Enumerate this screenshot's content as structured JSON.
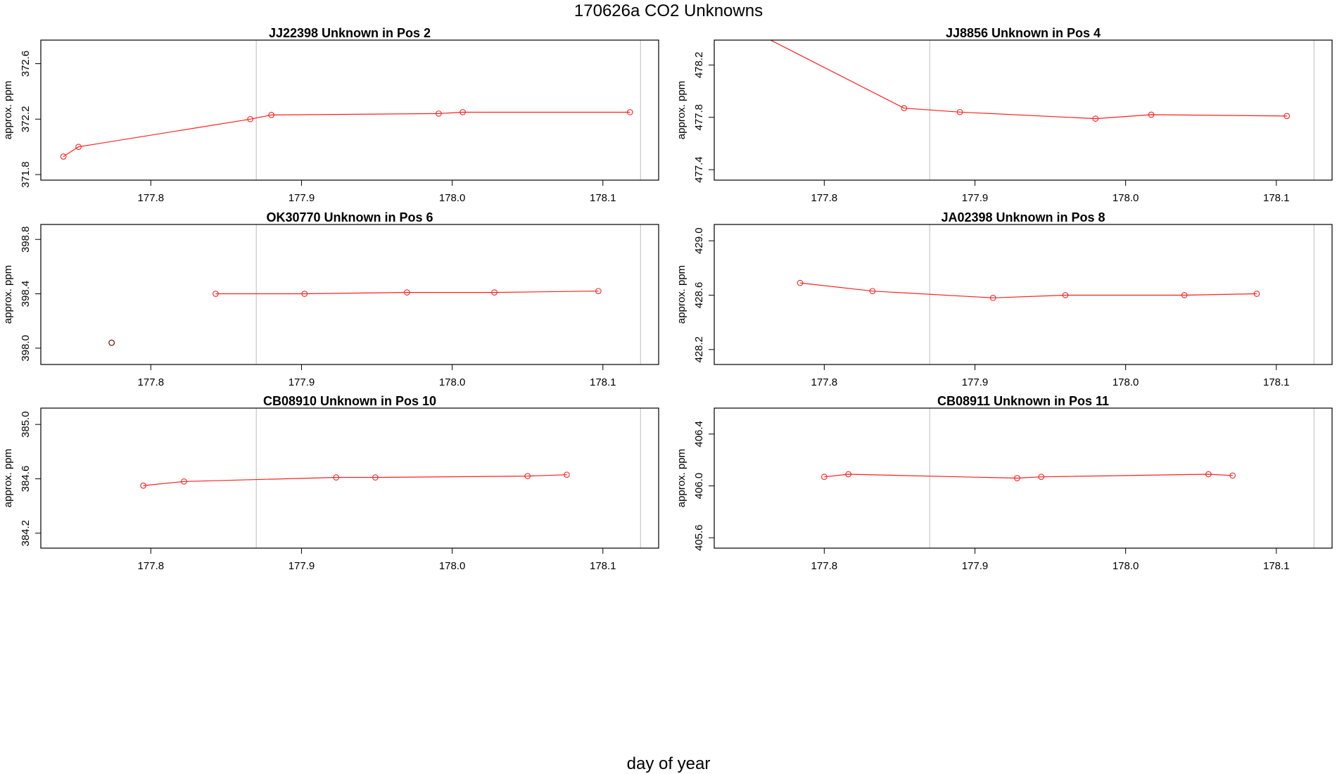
{
  "title": "170626a  CO2 Unknowns",
  "xlabel": "day of year",
  "colors": {
    "series": "#ff2020",
    "frame": "#000000",
    "marker_line": "#c8c8c8",
    "outlier": "#7a1010"
  },
  "chart_data": [
    {
      "type": "line",
      "title": "JJ22398    Unknown in Pos 2",
      "ylabel": "approx. ppm",
      "xlim": [
        177.727,
        178.137
      ],
      "ylim": [
        371.76,
        372.77
      ],
      "xticks": [
        177.8,
        177.9,
        178.0,
        178.1
      ],
      "xtick_labels": [
        "177.8",
        "177.9",
        "178.0",
        "178.1"
      ],
      "yticks": [
        371.8,
        372.2,
        372.6
      ],
      "ytick_labels": [
        "371.8",
        "372.2",
        "372.6"
      ],
      "vlines": [
        177.87,
        178.125
      ],
      "series": [
        {
          "x": [
            177.742,
            177.752,
            177.866,
            177.88,
            177.991,
            178.007,
            178.118
          ],
          "y": [
            371.93,
            372.0,
            372.2,
            372.23,
            372.24,
            372.25,
            372.25
          ]
        }
      ],
      "outliers": []
    },
    {
      "type": "line",
      "title": "JJ8856    Unknown in Pos 4",
      "ylabel": "approx. ppm",
      "xlim": [
        177.727,
        178.137
      ],
      "ylim": [
        477.32,
        478.39
      ],
      "xticks": [
        177.8,
        177.9,
        178.0,
        178.1
      ],
      "xtick_labels": [
        "177.8",
        "177.9",
        "178.0",
        "178.1"
      ],
      "yticks": [
        477.4,
        477.8,
        478.2
      ],
      "ytick_labels": [
        "477.4",
        "477.8",
        "478.2"
      ],
      "vlines": [
        177.87,
        178.125
      ],
      "series": [
        {
          "x": [
            177.72,
            177.853,
            177.89,
            177.98,
            178.017,
            178.107
          ],
          "y": [
            478.65,
            477.87,
            477.84,
            477.79,
            477.82,
            477.81
          ]
        }
      ],
      "outliers": []
    },
    {
      "type": "line",
      "title": "OK30770    Unknown in Pos 6",
      "ylabel": "approx. ppm",
      "xlim": [
        177.727,
        178.137
      ],
      "ylim": [
        397.88,
        398.91
      ],
      "xticks": [
        177.8,
        177.9,
        178.0,
        178.1
      ],
      "xtick_labels": [
        "177.8",
        "177.9",
        "178.0",
        "178.1"
      ],
      "yticks": [
        398.0,
        398.4,
        398.8
      ],
      "ytick_labels": [
        "398.0",
        "398.4",
        "398.8"
      ],
      "vlines": [
        177.87,
        178.125
      ],
      "series": [
        {
          "x": [
            177.843,
            177.902,
            177.97,
            178.028,
            178.097
          ],
          "y": [
            398.4,
            398.4,
            398.41,
            398.41,
            398.42
          ]
        }
      ],
      "outliers": [
        {
          "x": 177.774,
          "y": 398.04
        }
      ]
    },
    {
      "type": "line",
      "title": "JA02398    Unknown in Pos 8",
      "ylabel": "approx. ppm",
      "xlim": [
        177.727,
        178.137
      ],
      "ylim": [
        428.09,
        429.12
      ],
      "xticks": [
        177.8,
        177.9,
        178.0,
        178.1
      ],
      "xtick_labels": [
        "177.8",
        "177.9",
        "178.0",
        "178.1"
      ],
      "yticks": [
        428.2,
        428.6,
        429.0
      ],
      "ytick_labels": [
        "428.2",
        "428.6",
        "429.0"
      ],
      "vlines": [
        177.87,
        178.125
      ],
      "series": [
        {
          "x": [
            177.784,
            177.832,
            177.912,
            177.96,
            178.039,
            178.087
          ],
          "y": [
            428.69,
            428.63,
            428.58,
            428.6,
            428.6,
            428.61
          ]
        }
      ],
      "outliers": []
    },
    {
      "type": "line",
      "title": "CB08910    Unknown in Pos 10",
      "ylabel": "approx. ppm",
      "xlim": [
        177.727,
        178.137
      ],
      "ylim": [
        384.09,
        385.12
      ],
      "xticks": [
        177.8,
        177.9,
        178.0,
        178.1
      ],
      "xtick_labels": [
        "177.8",
        "177.9",
        "178.0",
        "178.1"
      ],
      "yticks": [
        384.2,
        384.6,
        385.0
      ],
      "ytick_labels": [
        "384.2",
        "384.6",
        "385.0"
      ],
      "vlines": [
        177.87,
        178.125
      ],
      "series": [
        {
          "x": [
            177.795,
            177.822,
            177.923,
            177.949,
            178.05,
            178.076
          ],
          "y": [
            384.55,
            384.58,
            384.61,
            384.61,
            384.62,
            384.63
          ]
        }
      ],
      "outliers": []
    },
    {
      "type": "line",
      "title": "CB08911    Unknown in Pos 11",
      "ylabel": "approx. ppm",
      "xlim": [
        177.727,
        178.137
      ],
      "ylim": [
        405.52,
        406.6
      ],
      "xticks": [
        177.8,
        177.9,
        178.0,
        178.1
      ],
      "xtick_labels": [
        "177.8",
        "177.9",
        "178.0",
        "178.1"
      ],
      "yticks": [
        405.6,
        406.0,
        406.4
      ],
      "ytick_labels": [
        "405.6",
        "406.0",
        "406.4"
      ],
      "vlines": [
        177.87,
        178.125
      ],
      "series": [
        {
          "x": [
            177.8,
            177.816,
            177.928,
            177.944,
            178.055,
            178.071
          ],
          "y": [
            406.07,
            406.09,
            406.06,
            406.07,
            406.09,
            406.08
          ]
        }
      ],
      "outliers": []
    }
  ]
}
